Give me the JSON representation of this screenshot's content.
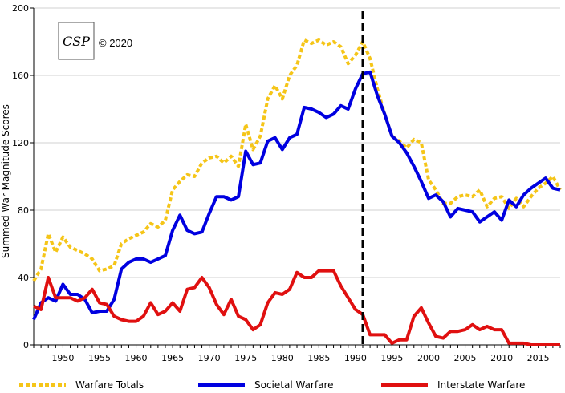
{
  "copyright": "© 2020",
  "logo_text": "CSP",
  "colors": {
    "total": "#f5c518",
    "societal": "#0000e0",
    "interstate": "#e01010",
    "marker": "#000000",
    "grid": "#d0d0d0"
  },
  "chart_data": {
    "type": "line",
    "title": "",
    "xlabel": "",
    "ylabel": "Summed War Magnitude Scores",
    "xlim": [
      1946,
      2018
    ],
    "ylim": [
      0,
      200
    ],
    "x_ticks": [
      "1950",
      "1955",
      "1960",
      "1965",
      "1970",
      "1975",
      "1980",
      "1985",
      "1990",
      "1995",
      "2000",
      "2005",
      "2010",
      "2015"
    ],
    "y_ticks": [
      "0",
      "40",
      "80",
      "120",
      "160",
      "200"
    ],
    "grid": "horizontal",
    "legend_position": "bottom",
    "vertical_marker": 1991,
    "x": [
      1946,
      1947,
      1948,
      1949,
      1950,
      1951,
      1952,
      1953,
      1954,
      1955,
      1956,
      1957,
      1958,
      1959,
      1960,
      1961,
      1962,
      1963,
      1964,
      1965,
      1966,
      1967,
      1968,
      1969,
      1970,
      1971,
      1972,
      1973,
      1974,
      1975,
      1976,
      1977,
      1978,
      1979,
      1980,
      1981,
      1982,
      1983,
      1984,
      1985,
      1986,
      1987,
      1988,
      1989,
      1990,
      1991,
      1992,
      1993,
      1994,
      1995,
      1996,
      1997,
      1998,
      1999,
      2000,
      2001,
      2002,
      2003,
      2004,
      2005,
      2006,
      2007,
      2008,
      2009,
      2010,
      2011,
      2012,
      2013,
      2014,
      2015,
      2016,
      2017,
      2018
    ],
    "series": [
      {
        "name": "Warfare Totals",
        "style": "dashed",
        "values": [
          38,
          45,
          66,
          55,
          64,
          58,
          56,
          54,
          51,
          44,
          45,
          47,
          60,
          63,
          65,
          67,
          72,
          70,
          74,
          92,
          97,
          101,
          100,
          108,
          111,
          112,
          108,
          112,
          106,
          131,
          116,
          124,
          146,
          154,
          146,
          160,
          166,
          181,
          179,
          181,
          178,
          180,
          177,
          167,
          172,
          180,
          170,
          152,
          137,
          124,
          121,
          117,
          122,
          120,
          98,
          92,
          84,
          84,
          88,
          89,
          88,
          92,
          82,
          87,
          88,
          81,
          87,
          82,
          88,
          93,
          96,
          100,
          92
        ],
        "color_key": "total"
      },
      {
        "name": "Societal Warfare",
        "style": "solid",
        "values": [
          15,
          25,
          28,
          26,
          36,
          30,
          30,
          27,
          19,
          20,
          20,
          27,
          45,
          49,
          51,
          51,
          49,
          51,
          53,
          68,
          77,
          68,
          66,
          67,
          78,
          88,
          88,
          86,
          88,
          115,
          107,
          108,
          121,
          123,
          116,
          123,
          125,
          141,
          140,
          138,
          135,
          137,
          142,
          140,
          152,
          161,
          162,
          148,
          137,
          124,
          120,
          114,
          106,
          97,
          87,
          89,
          85,
          76,
          81,
          80,
          79,
          73,
          76,
          79,
          74,
          86,
          82,
          89,
          93,
          96,
          99,
          93,
          92
        ],
        "color_key": "societal"
      },
      {
        "name": "Interstate Warfare",
        "style": "solid",
        "values": [
          23,
          21,
          40,
          28,
          28,
          28,
          26,
          28,
          33,
          25,
          24,
          17,
          15,
          14,
          14,
          17,
          25,
          18,
          20,
          25,
          20,
          33,
          34,
          40,
          34,
          24,
          18,
          27,
          17,
          15,
          9,
          12,
          25,
          31,
          30,
          33,
          43,
          40,
          40,
          44,
          44,
          44,
          35,
          28,
          21,
          18,
          6,
          6,
          6,
          1,
          3,
          3,
          17,
          22,
          13,
          5,
          4,
          8,
          8,
          9,
          12,
          9,
          11,
          9,
          9,
          1,
          1,
          1,
          0,
          0,
          0,
          0,
          0
        ],
        "color_key": "interstate"
      }
    ]
  }
}
